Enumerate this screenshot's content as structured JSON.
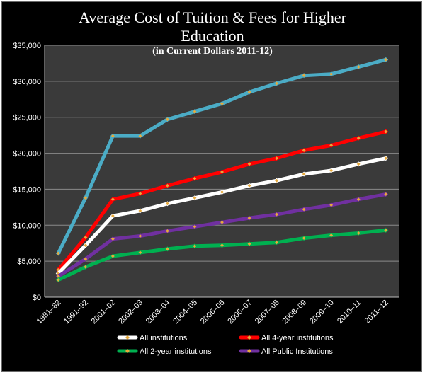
{
  "chart_data": {
    "type": "line",
    "title_line1": "Average Cost of Tuition & Fees for Higher",
    "title_line2": "Education",
    "subtitle": "(in Current Dollars 2011-12)",
    "xlabel": "",
    "ylabel": "",
    "ylim": [
      0,
      35000
    ],
    "y_ticks": [
      0,
      5000,
      10000,
      15000,
      20000,
      25000,
      30000,
      35000
    ],
    "y_tick_labels": [
      "$0",
      "$5,000",
      "$10,000",
      "$15,000",
      "$20,000",
      "$25,000",
      "$30,000",
      "$35,000"
    ],
    "grid": true,
    "legend_position": "bottom",
    "categories": [
      "1981–82",
      "1991–92",
      "2001–02",
      "2002–03",
      "2003–04",
      "2004–05",
      "2005–06",
      "2006–07",
      "2007–08",
      "2008–09",
      "2009–10",
      "2010–11",
      "2011–12"
    ],
    "series": [
      {
        "name": "",
        "color": "#4bacc6",
        "values": [
          6100,
          13800,
          22400,
          22400,
          24700,
          25800,
          26900,
          28500,
          29700,
          30800,
          31000,
          32000,
          33000
        ]
      },
      {
        "name": "All 4-year institutions",
        "color": "#ff0000",
        "values": [
          3800,
          8300,
          13600,
          14400,
          15500,
          16500,
          17400,
          18500,
          19300,
          20400,
          21100,
          22100,
          23000
        ]
      },
      {
        "name": "All institutions",
        "color": "#ffffff",
        "values": [
          3300,
          7200,
          11300,
          12000,
          13000,
          13800,
          14600,
          15500,
          16200,
          17100,
          17600,
          18500,
          19300
        ]
      },
      {
        "name": "All Public Institutions",
        "color": "#7030a0",
        "values": [
          2900,
          5300,
          8100,
          8500,
          9200,
          9800,
          10400,
          11000,
          11500,
          12200,
          12800,
          13600,
          14300
        ]
      },
      {
        "name": "All 2-year institutions",
        "color": "#00b050",
        "values": [
          2400,
          4200,
          5700,
          6200,
          6700,
          7100,
          7200,
          7400,
          7600,
          8200,
          8600,
          8900,
          9300
        ]
      }
    ],
    "legend_order": [
      2,
      1,
      4,
      3
    ],
    "marker_color": "#e6a93c"
  }
}
